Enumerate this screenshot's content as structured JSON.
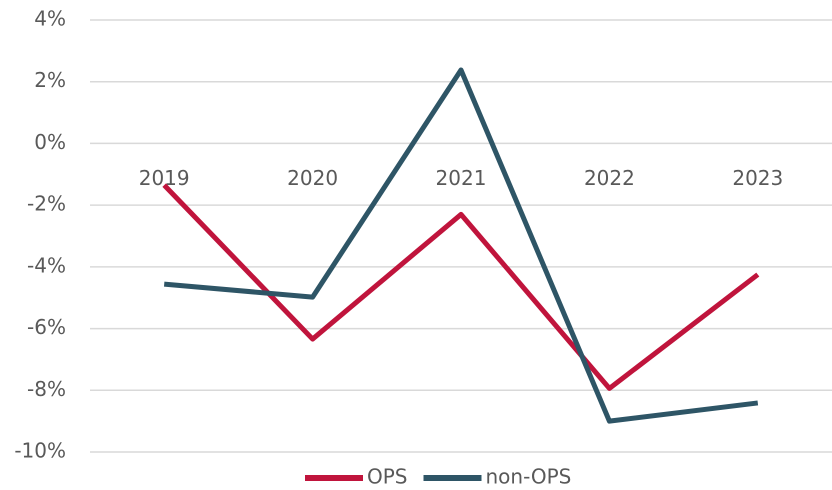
{
  "chart_data": {
    "type": "line",
    "categories": [
      "2019",
      "2020",
      "2021",
      "2022",
      "2023"
    ],
    "series": [
      {
        "name": "OPS",
        "color": "#c0143c",
        "values": [
          -1.35,
          -6.34,
          -2.3,
          -7.94,
          -4.25
        ]
      },
      {
        "name": "non-OPS",
        "color": "#2e5566",
        "values": [
          -4.56,
          -4.98,
          2.38,
          -9.0,
          -8.41
        ]
      }
    ],
    "ylim": [
      -10,
      4
    ],
    "yticks": [
      {
        "value": -10,
        "label": "-10%"
      },
      {
        "value": -8,
        "label": "-8%"
      },
      {
        "value": -6,
        "label": "-6%"
      },
      {
        "value": -4,
        "label": "-4%"
      },
      {
        "value": -2,
        "label": "-2%"
      },
      {
        "value": 0,
        "label": "0%"
      },
      {
        "value": 2,
        "label": "2%"
      },
      {
        "value": 4,
        "label": "4%"
      }
    ],
    "grid": true,
    "legend": "bottom"
  }
}
